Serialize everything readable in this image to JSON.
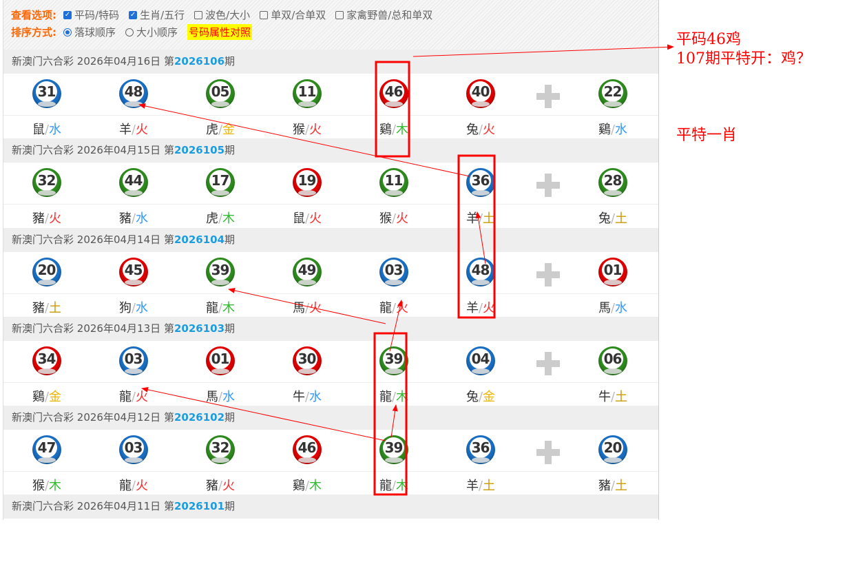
{
  "options": {
    "view_label": "查看选项:",
    "view_items": [
      {
        "label": "平码/特码",
        "checked": true
      },
      {
        "label": "生肖/五行",
        "checked": true
      },
      {
        "label": "波色/大小",
        "checked": false
      },
      {
        "label": "单双/合单双",
        "checked": false
      },
      {
        "label": "家禽野兽/总和单双",
        "checked": false
      }
    ],
    "sort_label": "排序方式:",
    "sort_items": [
      {
        "label": "落球顺序",
        "selected": true
      },
      {
        "label": "大小顺序",
        "selected": false
      }
    ],
    "attr_link": "号码属性对照"
  },
  "colors": {
    "red": "#e00000",
    "blue": "#1a6fc4",
    "green": "#2e8b1e",
    "水": "#3399ff",
    "火": "#ff2a2a",
    "金": "#f0b400",
    "木": "#33bb33",
    "土": "#cc9900",
    "issue": "#1a9de0"
  },
  "draws": [
    {
      "lottery": "新澳门六合彩",
      "date": "2026年04月16日",
      "prefix": "第",
      "issue": "2026106",
      "suffix": "期",
      "balls": [
        {
          "n": "31",
          "c": "blue",
          "z": "鼠",
          "e": "水"
        },
        {
          "n": "48",
          "c": "blue",
          "z": "羊",
          "e": "火"
        },
        {
          "n": "05",
          "c": "green",
          "z": "虎",
          "e": "金"
        },
        {
          "n": "11",
          "c": "green",
          "z": "猴",
          "e": "火"
        },
        {
          "n": "46",
          "c": "red",
          "z": "鷄",
          "e": "木"
        },
        {
          "n": "40",
          "c": "red",
          "z": "兔",
          "e": "火"
        },
        {
          "n": "22",
          "c": "green",
          "z": "鷄",
          "e": "水"
        }
      ]
    },
    {
      "lottery": "新澳门六合彩",
      "date": "2026年04月15日",
      "prefix": "第",
      "issue": "2026105",
      "suffix": "期",
      "balls": [
        {
          "n": "32",
          "c": "green",
          "z": "豬",
          "e": "火"
        },
        {
          "n": "44",
          "c": "green",
          "z": "豬",
          "e": "水"
        },
        {
          "n": "17",
          "c": "green",
          "z": "虎",
          "e": "木"
        },
        {
          "n": "19",
          "c": "red",
          "z": "鼠",
          "e": "火"
        },
        {
          "n": "11",
          "c": "green",
          "z": "猴",
          "e": "火"
        },
        {
          "n": "36",
          "c": "blue",
          "z": "羊",
          "e": "土"
        },
        {
          "n": "28",
          "c": "green",
          "z": "兔",
          "e": "土"
        }
      ]
    },
    {
      "lottery": "新澳门六合彩",
      "date": "2026年04月14日",
      "prefix": "第",
      "issue": "2026104",
      "suffix": "期",
      "balls": [
        {
          "n": "20",
          "c": "blue",
          "z": "豬",
          "e": "土"
        },
        {
          "n": "45",
          "c": "red",
          "z": "狗",
          "e": "水"
        },
        {
          "n": "39",
          "c": "green",
          "z": "龍",
          "e": "木"
        },
        {
          "n": "49",
          "c": "green",
          "z": "馬",
          "e": "火"
        },
        {
          "n": "03",
          "c": "blue",
          "z": "龍",
          "e": "火"
        },
        {
          "n": "48",
          "c": "blue",
          "z": "羊",
          "e": "火"
        },
        {
          "n": "01",
          "c": "red",
          "z": "馬",
          "e": "水"
        }
      ]
    },
    {
      "lottery": "新澳门六合彩",
      "date": "2026年04月13日",
      "prefix": "第",
      "issue": "2026103",
      "suffix": "期",
      "balls": [
        {
          "n": "34",
          "c": "red",
          "z": "鷄",
          "e": "金"
        },
        {
          "n": "03",
          "c": "blue",
          "z": "龍",
          "e": "火"
        },
        {
          "n": "01",
          "c": "red",
          "z": "馬",
          "e": "水"
        },
        {
          "n": "30",
          "c": "red",
          "z": "牛",
          "e": "水"
        },
        {
          "n": "39",
          "c": "green",
          "z": "龍",
          "e": "木"
        },
        {
          "n": "04",
          "c": "blue",
          "z": "兔",
          "e": "金"
        },
        {
          "n": "06",
          "c": "green",
          "z": "牛",
          "e": "土"
        }
      ]
    },
    {
      "lottery": "新澳门六合彩",
      "date": "2026年04月12日",
      "prefix": "第",
      "issue": "2026102",
      "suffix": "期",
      "balls": [
        {
          "n": "47",
          "c": "blue",
          "z": "猴",
          "e": "木"
        },
        {
          "n": "03",
          "c": "blue",
          "z": "龍",
          "e": "火"
        },
        {
          "n": "32",
          "c": "green",
          "z": "豬",
          "e": "火"
        },
        {
          "n": "46",
          "c": "red",
          "z": "鷄",
          "e": "木"
        },
        {
          "n": "39",
          "c": "green",
          "z": "龍",
          "e": "木"
        },
        {
          "n": "36",
          "c": "blue",
          "z": "羊",
          "e": "土"
        },
        {
          "n": "20",
          "c": "blue",
          "z": "豬",
          "e": "土"
        }
      ]
    },
    {
      "lottery": "新澳门六合彩",
      "date": "2026年04月11日",
      "prefix": "第",
      "issue": "2026101",
      "suffix": "期",
      "balls": []
    }
  ],
  "annotations": {
    "note1": "平码46鸡",
    "note2": "107期平特开：鸡？",
    "note3": "平特一肖"
  }
}
